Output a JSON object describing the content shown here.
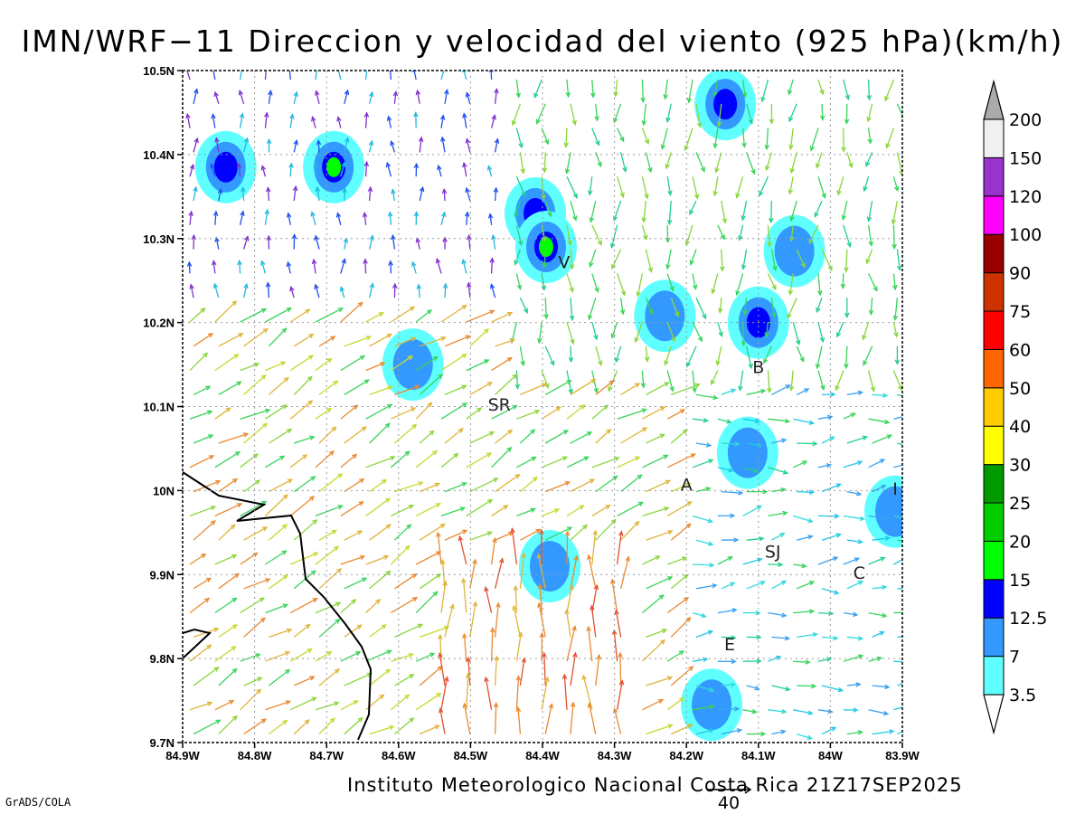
{
  "title": "IMN/WRF−11 Direccion y velocidad del viento (925 hPa)(km/h)",
  "footer": {
    "credit": "Instituto Meteorologico Nacional Costa Rica 21Z17SEP2025",
    "software": "GrADS/COLA",
    "reference_vector_label": "40"
  },
  "axes": {
    "x_ticks": [
      "84.9W",
      "84.8W",
      "84.7W",
      "84.6W",
      "84.5W",
      "84.4W",
      "84.3W",
      "84.2W",
      "84.1W",
      "84W",
      "83.9W"
    ],
    "y_ticks": [
      "10.5N",
      "10.4N",
      "10.3N",
      "10.2N",
      "10.1N",
      "10N",
      "9.9N",
      "9.8N",
      "9.7N"
    ],
    "lon_range": [
      -84.9,
      -83.9
    ],
    "lat_range": [
      9.7,
      10.5
    ],
    "grid": true
  },
  "places": [
    {
      "label": "SR",
      "lon": -84.46,
      "lat": 10.095
    },
    {
      "label": "V",
      "lon": -84.37,
      "lat": 10.265
    },
    {
      "label": "B",
      "lon": -84.1,
      "lat": 10.14
    },
    {
      "label": "A",
      "lon": -84.2,
      "lat": 10.0
    },
    {
      "label": "SJ",
      "lon": -84.08,
      "lat": 9.92
    },
    {
      "label": "C",
      "lon": -83.96,
      "lat": 9.895
    },
    {
      "label": "E",
      "lon": -84.14,
      "lat": 9.81
    },
    {
      "label": "I",
      "lon": -83.91,
      "lat": 9.995
    }
  ],
  "colorbar": {
    "levels": [
      "3.5",
      "7",
      "12.5",
      "15",
      "20",
      "25",
      "30",
      "40",
      "50",
      "60",
      "75",
      "90",
      "100",
      "120",
      "150",
      "200"
    ],
    "colors": [
      "#5fffff",
      "#3399ff",
      "#0000ff",
      "#00ff00",
      "#00cc00",
      "#009900",
      "#ffff00",
      "#ffcc00",
      "#ff6600",
      "#ff0000",
      "#cc3300",
      "#990000",
      "#ff00ff",
      "#9933cc",
      "#f0f0f0",
      "#aaaaaa"
    ]
  },
  "speed_cells": [
    {
      "lon": -84.84,
      "lat": 10.385,
      "level": "12.5"
    },
    {
      "lon": -84.69,
      "lat": 10.385,
      "level": "15"
    },
    {
      "lon": -84.41,
      "lat": 10.33,
      "level": "12.5"
    },
    {
      "lon": -84.395,
      "lat": 10.29,
      "level": "15"
    },
    {
      "lon": -84.146,
      "lat": 10.46,
      "level": "12.5"
    },
    {
      "lon": -84.1,
      "lat": 10.2,
      "level": "12.5"
    },
    {
      "lon": -84.05,
      "lat": 10.285,
      "level": "7"
    },
    {
      "lon": -84.58,
      "lat": 10.15,
      "level": "7"
    },
    {
      "lon": -84.23,
      "lat": 10.208,
      "level": "7"
    },
    {
      "lon": -84.115,
      "lat": 10.045,
      "level": "7"
    },
    {
      "lon": -83.91,
      "lat": 9.975,
      "level": "7"
    },
    {
      "lon": -84.39,
      "lat": 9.91,
      "level": "7"
    },
    {
      "lon": -84.165,
      "lat": 9.745,
      "level": "7"
    }
  ]
}
